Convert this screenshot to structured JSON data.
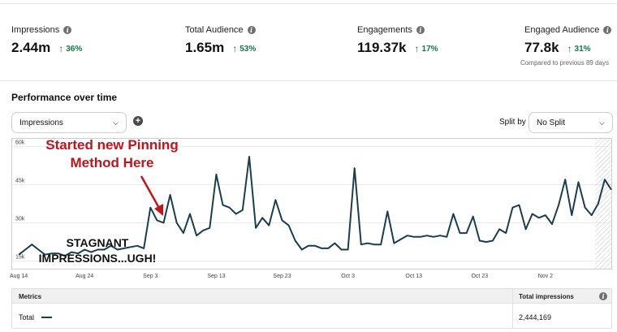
{
  "metrics": [
    {
      "label": "Impressions",
      "value": "2.44m",
      "change": "36%"
    },
    {
      "label": "Total Audience",
      "value": "1.65m",
      "change": "53%"
    },
    {
      "label": "Engagements",
      "value": "119.37k",
      "change": "17%"
    },
    {
      "label": "Engaged Audience",
      "value": "77.8k",
      "change": "31%"
    }
  ],
  "compare_note": "Compared to previous 89 days",
  "performance": {
    "title": "Performance over time",
    "metric_select": "Impressions",
    "split_label": "Split by",
    "split_select": "No Split"
  },
  "annotations": {
    "red_line1": "Started new Pinning",
    "red_line2": "Method Here",
    "black_line1": "STAGNANT",
    "black_line2": "IMPRESSIONS...UGH!"
  },
  "chart_data": {
    "type": "line",
    "line_color": "#1c3d4d",
    "accent_color": "#c0151b",
    "y_ticks": [
      "60k",
      "45k",
      "30k",
      "15k"
    ],
    "ylim": [
      12000,
      63000
    ],
    "x_ticks": [
      "Aug 14",
      "Aug 24",
      "Sep 3",
      "Sep 13",
      "Sep 23",
      "Oct 3",
      "Oct 13",
      "Oct 23",
      "Nov 2"
    ],
    "x_tick_day_index": [
      0,
      10,
      20,
      30,
      40,
      50,
      60,
      70,
      80
    ],
    "xlim": [
      -1,
      90
    ],
    "grid": true,
    "series": [
      {
        "values": [
          17500,
          19500,
          21500,
          19500,
          17500,
          18000,
          18000,
          17000,
          18500,
          18000,
          19500,
          18500,
          19500,
          19500,
          21000,
          19500,
          20000,
          20500,
          21000,
          20000,
          36000,
          31000,
          30000,
          41000,
          30000,
          26000,
          33500,
          25000,
          27000,
          28000,
          49000,
          37000,
          36000,
          33500,
          35000,
          56000,
          28000,
          32000,
          29000,
          39000,
          31000,
          29000,
          23000,
          19500,
          21000,
          21000,
          20000,
          20000,
          22000,
          19500,
          19500,
          51500,
          21500,
          22000,
          21500,
          21500,
          34500,
          22000,
          23500,
          25000,
          24500,
          24500,
          25000,
          24500,
          25000,
          24500,
          33500,
          26000,
          26000,
          32500,
          23000,
          22500,
          23000,
          27500,
          26000,
          36000,
          37000,
          27500,
          33500,
          32000,
          33000,
          29500,
          37000,
          47000,
          33000,
          46000,
          36000,
          33000,
          37500,
          47000,
          43000
        ]
      }
    ]
  },
  "table": {
    "metrics_header": "Metrics",
    "impressions_header": "Total impressions",
    "row_label": "Total",
    "row_value": "2,444,169"
  }
}
